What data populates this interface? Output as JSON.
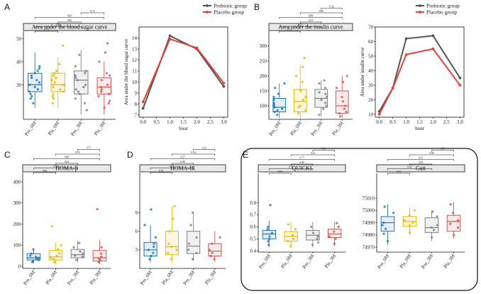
{
  "panel_labels": [
    "A",
    "B",
    "C",
    "D",
    "E"
  ],
  "chart_data": [
    {
      "id": "box-glucose",
      "type": "box",
      "title": "Area under the blood sugar curve",
      "categories": [
        "Pro_0M",
        "Pla_0M",
        "Pro_3M",
        "Pla_3M"
      ],
      "colors": [
        "#1f77b4",
        "#e6b800",
        "#808080",
        "#d9534f"
      ],
      "ylim": [
        15,
        52
      ],
      "yticks": [
        30,
        40,
        50
      ],
      "ytick_labels": [
        "30",
        "40",
        "50"
      ],
      "boxes": [
        {
          "q1": 27,
          "median": 30,
          "q3": 35,
          "min": 20,
          "max": 44
        },
        {
          "q1": 27,
          "median": 30,
          "q3": 35,
          "min": 20,
          "max": 42
        },
        {
          "q1": 26,
          "median": 32,
          "q3": 36,
          "min": 17,
          "max": 45
        },
        {
          "q1": 26,
          "median": 29,
          "q3": 33,
          "min": 17,
          "max": 40
        }
      ],
      "points": [
        [
          33,
          28,
          25,
          31,
          36,
          22,
          29,
          34,
          27,
          38,
          30,
          24,
          35,
          32,
          26,
          37
        ],
        [
          31,
          27,
          24,
          33,
          36,
          22,
          29,
          34,
          28,
          39,
          30,
          25,
          35,
          32,
          26,
          47
        ],
        [
          32,
          28,
          24,
          35,
          38,
          22,
          29,
          34,
          27,
          43,
          30,
          19,
          36,
          26,
          33
        ],
        [
          29,
          27,
          23,
          32,
          35,
          20,
          28,
          34,
          26,
          40,
          30,
          22,
          44,
          48,
          25
        ]
      ],
      "comparisons": [
        {
          "a": 0,
          "b": 1,
          "p": "0.75"
        },
        {
          "a": 0,
          "b": 2,
          "p": "0.98"
        },
        {
          "a": 1,
          "b": 2,
          "p": "0.86"
        },
        {
          "a": 0,
          "b": 3,
          "p": "0.95"
        },
        {
          "a": 2,
          "b": 3,
          "p": "0.72"
        }
      ]
    },
    {
      "id": "line-glucose",
      "type": "line",
      "xlabel": "hour",
      "ylabel": "Area under the blood sugar curve",
      "xlim": [
        -0.15,
        3.15
      ],
      "ylim": [
        6.8,
        15.0
      ],
      "xticks": [
        0.0,
        0.5,
        1.0,
        1.5,
        2.0,
        2.5,
        3.0
      ],
      "xtick_labels": [
        "0.0",
        "0.5",
        "1.0",
        "1.5",
        "2.0",
        "2.5",
        "3.0"
      ],
      "yticks": [
        7,
        8,
        9,
        10,
        11,
        12,
        13,
        14
      ],
      "ytick_labels": [
        "7",
        "8",
        "9",
        "10",
        "11",
        "12",
        "13",
        "14"
      ],
      "x": [
        0,
        1,
        2,
        3
      ],
      "series": [
        {
          "name": "Probiotic group",
          "color": "#555555",
          "values": [
            7.6,
            14.2,
            13.0,
            9.6
          ]
        },
        {
          "name": "Placebo group",
          "color": "#e3413b",
          "values": [
            8.2,
            13.9,
            13.1,
            9.9
          ]
        }
      ]
    },
    {
      "id": "box-insulin",
      "type": "box",
      "title": "Area under the insulin curve",
      "categories": [
        "Pro_0M",
        "Pla_0M",
        "Pro_3M",
        "Pla_3M"
      ],
      "colors": [
        "#1f77b4",
        "#e6b800",
        "#808080",
        "#d9534f"
      ],
      "ylim": [
        55,
        340
      ],
      "yticks": [
        100,
        150,
        200,
        250,
        300
      ],
      "ytick_labels": [
        "100",
        "150",
        "200",
        "250",
        "300"
      ],
      "boxes": [
        {
          "q1": 80,
          "median": 95,
          "q3": 125,
          "min": 60,
          "max": 175
        },
        {
          "q1": 80,
          "median": 115,
          "q3": 155,
          "min": 60,
          "max": 235
        },
        {
          "q1": 95,
          "median": 125,
          "q3": 155,
          "min": 65,
          "max": 185
        },
        {
          "q1": 75,
          "median": 100,
          "q3": 150,
          "min": 60,
          "max": 200
        }
      ],
      "points": [
        [
          70,
          85,
          95,
          105,
          120,
          140,
          160,
          175,
          90,
          110,
          80,
          100,
          130
        ],
        [
          75,
          100,
          130,
          150,
          180,
          200,
          230,
          260,
          95,
          120,
          85
        ],
        [
          70,
          90,
          110,
          130,
          145,
          160,
          175,
          185,
          100,
          120,
          140
        ],
        [
          65,
          80,
          100,
          130,
          160,
          180,
          200,
          90,
          115,
          75
        ]
      ],
      "comparisons": [
        {
          "a": 0,
          "b": 1,
          "p": "0.71"
        },
        {
          "a": 0,
          "b": 2,
          "p": "0.15"
        },
        {
          "a": 1,
          "b": 2,
          "p": "0.52"
        },
        {
          "a": 0,
          "b": 3,
          "p": "0.88"
        },
        {
          "a": 1,
          "b": 3,
          "p": "0.86"
        },
        {
          "a": 2,
          "b": 3,
          "p": "0.32"
        }
      ]
    },
    {
      "id": "line-insulin",
      "type": "line",
      "xlabel": "hour",
      "ylabel": "Area under insulin curve",
      "xlim": [
        -0.15,
        3.15
      ],
      "ylim": [
        8,
        70
      ],
      "xticks": [
        0.0,
        0.5,
        1.0,
        1.5,
        2.0,
        2.5,
        3.0
      ],
      "xtick_labels": [
        "0.0",
        "0.5",
        "1.0",
        "1.5",
        "2.0",
        "2.5",
        "3.0"
      ],
      "yticks": [
        10,
        20,
        30,
        40,
        50,
        60,
        70
      ],
      "ytick_labels": [
        "10",
        "20",
        "30",
        "40",
        "50",
        "60",
        "70"
      ],
      "x": [
        0,
        0.5,
        1,
        2,
        3
      ],
      "series": [
        {
          "name": "Probiotic group",
          "color": "#555555",
          "values": [
            12,
            28,
            62,
            64,
            35
          ]
        },
        {
          "name": "Placebo group",
          "color": "#e3413b",
          "values": [
            10,
            28,
            51,
            55,
            30
          ]
        }
      ]
    },
    {
      "id": "box-homa-beta",
      "type": "box",
      "title": "HOMA-β",
      "categories": [
        "Pro_0M",
        "Pla_0M",
        "Pro_3M",
        "Pla_3M"
      ],
      "colors": [
        "#1f77b4",
        "#e6b800",
        "#808080",
        "#d9534f"
      ],
      "ylim": [
        -10,
        430
      ],
      "yticks": [
        0,
        100,
        200,
        300,
        400
      ],
      "ytick_labels": [
        "0",
        "100",
        "200",
        "300",
        "400"
      ],
      "boxes": [
        {
          "q1": 30,
          "median": 40,
          "q3": 60,
          "min": 15,
          "max": 85
        },
        {
          "q1": 30,
          "median": 45,
          "q3": 75,
          "min": 10,
          "max": 110
        },
        {
          "q1": 40,
          "median": 55,
          "q3": 80,
          "min": 20,
          "max": 120
        },
        {
          "q1": 25,
          "median": 40,
          "q3": 75,
          "min": 10,
          "max": 125
        }
      ],
      "points": [
        [
          20,
          30,
          40,
          50,
          60,
          80,
          35,
          45,
          25
        ],
        [
          20,
          40,
          60,
          80,
          100,
          190,
          35,
          50
        ],
        [
          30,
          50,
          70,
          90,
          110,
          45,
          60
        ],
        [
          20,
          35,
          60,
          90,
          270,
          45,
          30
        ]
      ],
      "comparisons": [
        {
          "a": 0,
          "b": 1,
          "p": "0.66"
        },
        {
          "a": 0,
          "b": 2,
          "p": "0.69"
        },
        {
          "a": 1,
          "b": 2,
          "p": "0.22"
        },
        {
          "a": 0,
          "b": 3,
          "p": "0.88"
        },
        {
          "a": 1,
          "b": 3,
          "p": "0.55"
        },
        {
          "a": 2,
          "b": 3,
          "p": "0.77"
        }
      ]
    },
    {
      "id": "box-homa-ir",
      "type": "box",
      "title": "HOMA-IR",
      "categories": [
        "Pro_0M",
        "Pla_0M",
        "Pro_3M",
        "Pla_3M"
      ],
      "colors": [
        "#1f77b4",
        "#e6b800",
        "#808080",
        "#d9534f"
      ],
      "ylim": [
        0,
        15
      ],
      "yticks": [
        3,
        6,
        9
      ],
      "ytick_labels": [
        "3",
        "6",
        "9"
      ],
      "boxes": [
        {
          "q1": 2.0,
          "median": 3.0,
          "q3": 4.2,
          "min": 1.0,
          "max": 7.0
        },
        {
          "q1": 2.2,
          "median": 3.5,
          "q3": 6.0,
          "min": 1.0,
          "max": 10.0
        },
        {
          "q1": 2.4,
          "median": 3.6,
          "q3": 6.0,
          "min": 1.2,
          "max": 9.0
        },
        {
          "q1": 2.0,
          "median": 2.8,
          "q3": 4.0,
          "min": 1.0,
          "max": 6.0
        }
      ],
      "points": [
        [
          1.5,
          2.5,
          3,
          4,
          5,
          7,
          9.5,
          2,
          3.5
        ],
        [
          1.5,
          3,
          4,
          6,
          8,
          10,
          2.5,
          3.5
        ],
        [
          1.5,
          3,
          4,
          5,
          7,
          9,
          2.5
        ],
        [
          1.5,
          2.5,
          3,
          4,
          5,
          2
        ]
      ],
      "comparisons": [
        {
          "a": 0,
          "b": 1,
          "p": "0.91"
        },
        {
          "a": 0,
          "b": 2,
          "p": "0.71"
        },
        {
          "a": 1,
          "b": 2,
          "p": "0.88"
        },
        {
          "a": 0,
          "b": 3,
          "p": "0.57"
        },
        {
          "a": 1,
          "b": 3,
          "p": "0.34"
        },
        {
          "a": 2,
          "b": 3,
          "p": "0.23"
        }
      ]
    },
    {
      "id": "box-quicki",
      "type": "box",
      "title": "QUICKI",
      "categories": [
        "Pro_0M",
        "Pla_0M",
        "Pro_3M",
        "Pla_3M"
      ],
      "colors": [
        "#1f77b4",
        "#e6b800",
        "#808080",
        "#d9534f"
      ],
      "ylim": [
        0.39,
        1.02
      ],
      "yticks": [
        0.4,
        0.5,
        0.6,
        0.7,
        0.8
      ],
      "ytick_labels": [
        "0.4",
        "0.5",
        "0.6",
        "0.7",
        "0.8"
      ],
      "boxes": [
        {
          "q1": 0.5,
          "median": 0.54,
          "q3": 0.57,
          "min": 0.43,
          "max": 0.65
        },
        {
          "q1": 0.48,
          "median": 0.52,
          "q3": 0.56,
          "min": 0.42,
          "max": 0.64
        },
        {
          "q1": 0.49,
          "median": 0.53,
          "q3": 0.57,
          "min": 0.43,
          "max": 0.64
        },
        {
          "q1": 0.51,
          "median": 0.54,
          "q3": 0.58,
          "min": 0.44,
          "max": 0.64
        }
      ],
      "points": [
        [
          0.45,
          0.5,
          0.55,
          0.6,
          0.78,
          0.52,
          0.58,
          0.48
        ],
        [
          0.44,
          0.5,
          0.53,
          0.58,
          0.62,
          0.48
        ],
        [
          0.45,
          0.5,
          0.55,
          0.6,
          0.52,
          0.47
        ],
        [
          0.46,
          0.52,
          0.56,
          0.6,
          0.5,
          0.63
        ]
      ],
      "comparisons": [
        {
          "a": 0,
          "b": 1,
          "p": "0.93"
        },
        {
          "a": 0,
          "b": 2,
          "p": "0.70"
        },
        {
          "a": 1,
          "b": 2,
          "p": "0.88"
        },
        {
          "a": 0,
          "b": 3,
          "p": "0.77"
        },
        {
          "a": 1,
          "b": 3,
          "p": "0.34"
        },
        {
          "a": 2,
          "b": 3,
          "p": "0.23"
        }
      ]
    },
    {
      "id": "box-gutt",
      "type": "box",
      "title": "Gutt",
      "categories": [
        "Pro_0M",
        "Pla_0M",
        "Pro_3M",
        "Pla_3M"
      ],
      "colors": [
        "#1f77b4",
        "#e6b800",
        "#808080",
        "#d9534f"
      ],
      "ylim": [
        74966,
        75028
      ],
      "yticks": [
        74970,
        74980,
        74990,
        75000,
        75010
      ],
      "ytick_labels": [
        "74970",
        "74980",
        "74990",
        "75000",
        "75010"
      ],
      "boxes": [
        {
          "q1": 74983,
          "median": 74990,
          "q3": 74995,
          "min": 74972,
          "max": 75005
        },
        {
          "q1": 74987,
          "median": 74991,
          "q3": 74995,
          "min": 74980,
          "max": 75002
        },
        {
          "q1": 74982,
          "median": 74986,
          "q3": 74994,
          "min": 74975,
          "max": 75000
        },
        {
          "q1": 74983,
          "median": 74991,
          "q3": 74996,
          "min": 74977,
          "max": 75007
        }
      ],
      "points": [
        [
          74975,
          74985,
          74990,
          74998,
          75003,
          74988,
          74981
        ],
        [
          74982,
          74988,
          74992,
          74996,
          75000,
          74990
        ],
        [
          74978,
          74984,
          74988,
          74995,
          74999,
          74986
        ],
        [
          74980,
          74986,
          74992,
          74998,
          75005,
          74989
        ]
      ],
      "comparisons": [
        {
          "a": 0,
          "b": 1,
          "p": "0.42"
        },
        {
          "a": 0,
          "b": 2,
          "p": "0.42"
        },
        {
          "a": 1,
          "b": 2,
          "p": "0.93"
        },
        {
          "a": 0,
          "b": 3,
          "p": "0.15"
        },
        {
          "a": 1,
          "b": 3,
          "p": "0.86"
        },
        {
          "a": 2,
          "b": 3,
          "p": "0.59"
        }
      ]
    }
  ]
}
